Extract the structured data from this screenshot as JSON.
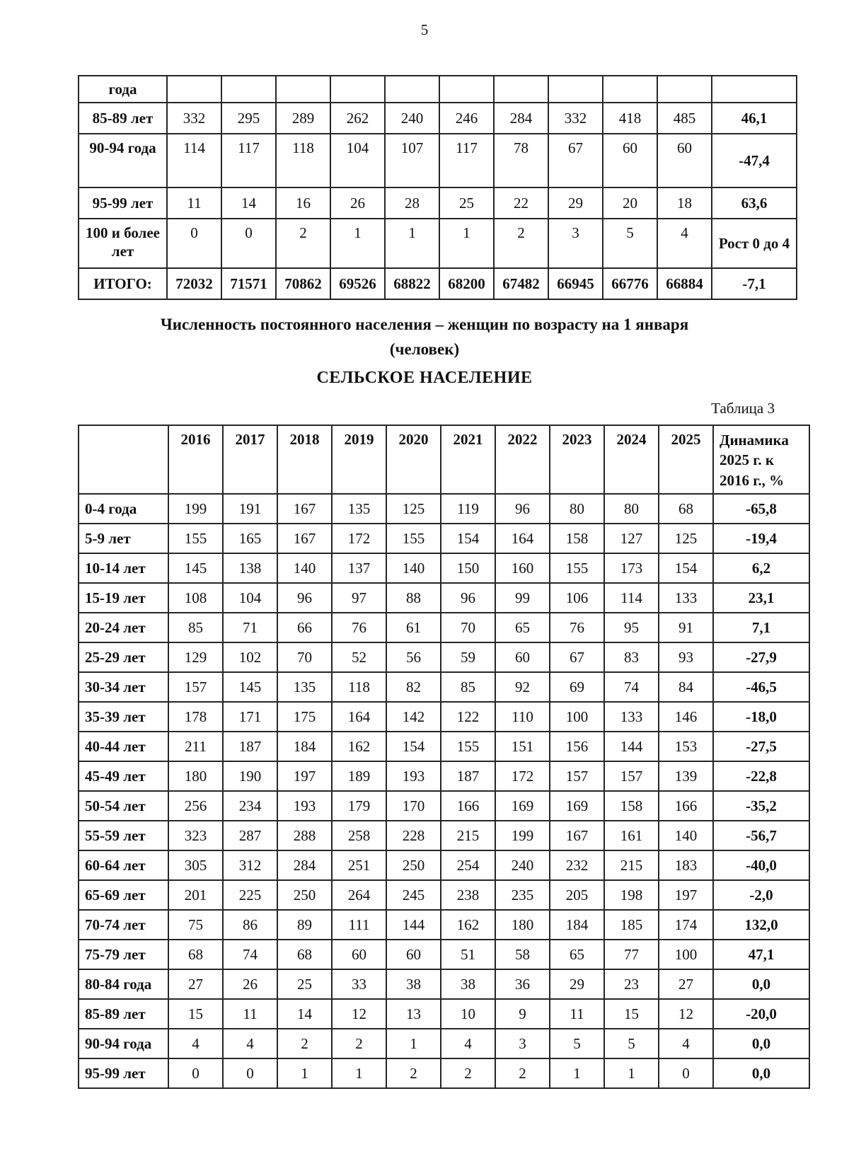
{
  "page_number": "5",
  "table_continued": {
    "rows": [
      {
        "label": "года",
        "values": [
          "",
          "",
          "",
          "",
          "",
          "",
          "",
          "",
          "",
          ""
        ],
        "dynamics": ""
      },
      {
        "label": "85-89 лет",
        "values": [
          "332",
          "295",
          "289",
          "262",
          "240",
          "246",
          "284",
          "332",
          "418",
          "485"
        ],
        "dynamics": "46,1"
      },
      {
        "label": "90-94 года",
        "values": [
          "114",
          "117",
          "118",
          "104",
          "107",
          "117",
          "78",
          "67",
          "60",
          "60"
        ],
        "dynamics": "-47,4"
      },
      {
        "label": "95-99 лет",
        "values": [
          "11",
          "14",
          "16",
          "26",
          "28",
          "25",
          "22",
          "29",
          "20",
          "18"
        ],
        "dynamics": "63,6"
      },
      {
        "label": "100 и более лет",
        "values": [
          "0",
          "0",
          "2",
          "1",
          "1",
          "1",
          "2",
          "3",
          "5",
          "4"
        ],
        "dynamics": "Рост 0 до 4"
      },
      {
        "label": "ИТОГО:",
        "values": [
          "72032",
          "71571",
          "70862",
          "69526",
          "68822",
          "68200",
          "67482",
          "66945",
          "66776",
          "66884"
        ],
        "dynamics": "-7,1"
      }
    ]
  },
  "section": {
    "title_line1": "Численность постоянного населения – женщин по возрасту на 1 января",
    "title_line2": "(человек)",
    "subtitle": "СЕЛЬСКОЕ НАСЕЛЕНИЕ",
    "table_caption": "Таблица 3"
  },
  "table3": {
    "header": {
      "corner": "",
      "years": [
        "2016",
        "2017",
        "2018",
        "2019",
        "2020",
        "2021",
        "2022",
        "2023",
        "2024",
        "2025"
      ],
      "dynamics_label": "Динамика 2025 г. к 2016 г., %"
    },
    "rows": [
      {
        "label": "0-4 года",
        "values": [
          "199",
          "191",
          "167",
          "135",
          "125",
          "119",
          "96",
          "80",
          "80",
          "68"
        ],
        "dynamics": "-65,8"
      },
      {
        "label": "5-9 лет",
        "values": [
          "155",
          "165",
          "167",
          "172",
          "155",
          "154",
          "164",
          "158",
          "127",
          "125"
        ],
        "dynamics": "-19,4"
      },
      {
        "label": "10-14 лет",
        "values": [
          "145",
          "138",
          "140",
          "137",
          "140",
          "150",
          "160",
          "155",
          "173",
          "154"
        ],
        "dynamics": "6,2"
      },
      {
        "label": "15-19 лет",
        "values": [
          "108",
          "104",
          "96",
          "97",
          "88",
          "96",
          "99",
          "106",
          "114",
          "133"
        ],
        "dynamics": "23,1"
      },
      {
        "label": "20-24 лет",
        "values": [
          "85",
          "71",
          "66",
          "76",
          "61",
          "70",
          "65",
          "76",
          "95",
          "91"
        ],
        "dynamics": "7,1"
      },
      {
        "label": "25-29 лет",
        "values": [
          "129",
          "102",
          "70",
          "52",
          "56",
          "59",
          "60",
          "67",
          "83",
          "93"
        ],
        "dynamics": "-27,9"
      },
      {
        "label": "30-34 лет",
        "values": [
          "157",
          "145",
          "135",
          "118",
          "82",
          "85",
          "92",
          "69",
          "74",
          "84"
        ],
        "dynamics": "-46,5"
      },
      {
        "label": "35-39 лет",
        "values": [
          "178",
          "171",
          "175",
          "164",
          "142",
          "122",
          "110",
          "100",
          "133",
          "146"
        ],
        "dynamics": "-18,0"
      },
      {
        "label": "40-44 лет",
        "values": [
          "211",
          "187",
          "184",
          "162",
          "154",
          "155",
          "151",
          "156",
          "144",
          "153"
        ],
        "dynamics": "-27,5"
      },
      {
        "label": "45-49 лет",
        "values": [
          "180",
          "190",
          "197",
          "189",
          "193",
          "187",
          "172",
          "157",
          "157",
          "139"
        ],
        "dynamics": "-22,8"
      },
      {
        "label": "50-54 лет",
        "values": [
          "256",
          "234",
          "193",
          "179",
          "170",
          "166",
          "169",
          "169",
          "158",
          "166"
        ],
        "dynamics": "-35,2"
      },
      {
        "label": "55-59 лет",
        "values": [
          "323",
          "287",
          "288",
          "258",
          "228",
          "215",
          "199",
          "167",
          "161",
          "140"
        ],
        "dynamics": "-56,7"
      },
      {
        "label": "60-64 лет",
        "values": [
          "305",
          "312",
          "284",
          "251",
          "250",
          "254",
          "240",
          "232",
          "215",
          "183"
        ],
        "dynamics": "-40,0"
      },
      {
        "label": "65-69 лет",
        "values": [
          "201",
          "225",
          "250",
          "264",
          "245",
          "238",
          "235",
          "205",
          "198",
          "197"
        ],
        "dynamics": "-2,0"
      },
      {
        "label": "70-74 лет",
        "values": [
          "75",
          "86",
          "89",
          "111",
          "144",
          "162",
          "180",
          "184",
          "185",
          "174"
        ],
        "dynamics": "132,0"
      },
      {
        "label": "75-79 лет",
        "values": [
          "68",
          "74",
          "68",
          "60",
          "60",
          "51",
          "58",
          "65",
          "77",
          "100"
        ],
        "dynamics": "47,1"
      },
      {
        "label": "80-84 года",
        "values": [
          "27",
          "26",
          "25",
          "33",
          "38",
          "38",
          "36",
          "29",
          "23",
          "27"
        ],
        "dynamics": "0,0"
      },
      {
        "label": "85-89 лет",
        "values": [
          "15",
          "11",
          "14",
          "12",
          "13",
          "10",
          "9",
          "11",
          "15",
          "12"
        ],
        "dynamics": "-20,0"
      },
      {
        "label": "90-94 года",
        "values": [
          "4",
          "4",
          "2",
          "2",
          "1",
          "4",
          "3",
          "5",
          "5",
          "4"
        ],
        "dynamics": "0,0"
      },
      {
        "label": "95-99 лет",
        "values": [
          "0",
          "0",
          "1",
          "1",
          "2",
          "2",
          "2",
          "1",
          "1",
          "0"
        ],
        "dynamics": "0,0"
      }
    ]
  }
}
